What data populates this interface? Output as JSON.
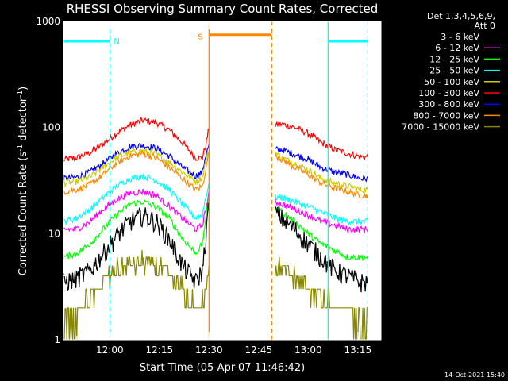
{
  "chart_data": {
    "type": "line",
    "title": "RHESSI Observing Summary Count Rates, Corrected",
    "xlabel": "Start Time (05-Apr-07 11:46:42)",
    "ylabel": "Corrected Count Rate (s",
    "ylabel_sup1": "-1",
    "ylabel_mid": " detector",
    "ylabel_sup2": "-1",
    "ylabel_end": ")",
    "y_scale": "log",
    "ylim": [
      1,
      1000
    ],
    "xlim_min": [
      0,
      96
    ],
    "x_ticks": [
      {
        "m": 14,
        "label": "12:00"
      },
      {
        "m": 29,
        "label": "12:15"
      },
      {
        "m": 44,
        "label": "12:30"
      },
      {
        "m": 59,
        "label": "12:45"
      },
      {
        "m": 74,
        "label": "13:00"
      },
      {
        "m": 89,
        "label": "13:15"
      }
    ],
    "y_ticks": [
      {
        "v": 1,
        "label": "1"
      },
      {
        "v": 10,
        "label": "10"
      },
      {
        "v": 100,
        "label": "100"
      },
      {
        "v": 1000,
        "label": "1000"
      }
    ],
    "legend": {
      "placement": "right",
      "header": [
        "Det 1,3,4,5,6,9,",
        "Att 0"
      ],
      "entries": [
        {
          "name": "3 - 6 keV",
          "color": "#000000"
        },
        {
          "name": "6 - 12 keV",
          "color": "#ff00ff"
        },
        {
          "name": "12 - 25 keV",
          "color": "#00ff00"
        },
        {
          "name": "25 - 50 keV",
          "color": "#00ffff"
        },
        {
          "name": "50 - 100 keV",
          "color": "#cccc00"
        },
        {
          "name": "100 - 300 keV",
          "color": "#ff0000"
        },
        {
          "name": "300 - 800 keV",
          "color": "#0000ff"
        },
        {
          "name": "800 - 7000 keV",
          "color": "#ff8800"
        },
        {
          "name": "7000 - 15000 keV",
          "color": "#888800"
        }
      ]
    },
    "gap": {
      "start_min": 44,
      "end_min": 63
    },
    "night_markers": {
      "color": "#00ffff",
      "label": "N",
      "dashed_min": [
        0,
        14,
        92
      ],
      "solid_min": [
        80
      ],
      "bars": [
        [
          0,
          14
        ],
        [
          80,
          92
        ]
      ],
      "bar_level": 650
    },
    "saa_marker": {
      "color": "#ff8800",
      "label": "S",
      "solid_min": [
        44
      ],
      "dashed_min": [
        63
      ],
      "bar": [
        44,
        63
      ],
      "bar_level": 750
    },
    "footer_timestamp": "14-Oct-2021 15:40",
    "series": [
      {
        "name": "100 - 300 keV",
        "color": "#ff0000",
        "x": [
          0,
          4,
          8,
          12,
          16,
          20,
          24,
          28,
          32,
          36,
          40,
          42,
          43,
          44,
          64,
          66,
          70,
          74,
          78,
          82,
          86,
          90,
          92
        ],
        "y": [
          50,
          52,
          58,
          70,
          88,
          105,
          117,
          112,
          95,
          72,
          52,
          52,
          68,
          100,
          105,
          108,
          100,
          88,
          72,
          62,
          57,
          53,
          53
        ]
      },
      {
        "name": "300 - 800 keV",
        "color": "#0000ff",
        "x": [
          0,
          4,
          8,
          12,
          16,
          20,
          24,
          28,
          32,
          36,
          40,
          42,
          43,
          44,
          64,
          66,
          70,
          74,
          78,
          82,
          86,
          90,
          92
        ],
        "y": [
          33,
          34,
          38,
          46,
          57,
          66,
          68,
          64,
          54,
          42,
          35,
          38,
          55,
          68,
          62,
          62,
          56,
          50,
          42,
          38,
          36,
          33,
          33
        ]
      },
      {
        "name": "50 - 100 keV",
        "color": "#cccc00",
        "x": [
          0,
          4,
          8,
          12,
          16,
          20,
          24,
          28,
          32,
          36,
          40,
          42,
          43,
          44,
          64,
          66,
          70,
          74,
          78,
          82,
          86,
          90,
          92
        ],
        "y": [
          30,
          31,
          34,
          42,
          52,
          58,
          60,
          56,
          47,
          38,
          31,
          34,
          48,
          62,
          58,
          52,
          46,
          40,
          33,
          30,
          28,
          26,
          26
        ]
      },
      {
        "name": "800 - 7000 keV",
        "color": "#ff8800",
        "x": [
          0,
          4,
          8,
          12,
          16,
          20,
          24,
          28,
          32,
          36,
          40,
          42,
          43,
          44,
          64,
          66,
          70,
          74,
          78,
          82,
          86,
          90,
          92
        ],
        "y": [
          25,
          26,
          29,
          36,
          46,
          54,
          57,
          52,
          42,
          33,
          26,
          28,
          40,
          60,
          55,
          50,
          42,
          36,
          30,
          27,
          25,
          23,
          23
        ]
      },
      {
        "name": "25 - 50 keV",
        "color": "#00ffff",
        "x": [
          0,
          4,
          8,
          12,
          16,
          20,
          24,
          28,
          32,
          36,
          40,
          42,
          43,
          44,
          64,
          66,
          70,
          74,
          78,
          82,
          86,
          90,
          92
        ],
        "y": [
          13,
          14,
          17,
          22,
          28,
          33,
          35,
          32,
          26,
          19,
          14,
          15,
          22,
          30,
          22,
          22,
          20,
          18,
          16,
          14,
          13,
          13,
          13
        ]
      },
      {
        "name": "6 - 12 keV",
        "color": "#ff00ff",
        "x": [
          0,
          4,
          8,
          12,
          16,
          20,
          24,
          28,
          32,
          36,
          40,
          42,
          43,
          44,
          64,
          66,
          70,
          74,
          78,
          82,
          86,
          90,
          92
        ],
        "y": [
          11,
          11,
          13,
          17,
          21,
          24,
          25,
          23,
          18,
          14,
          11,
          12,
          17,
          24,
          20,
          19,
          17,
          15,
          13,
          12,
          11,
          11,
          11
        ]
      },
      {
        "name": "12 - 25 keV",
        "color": "#00ff00",
        "x": [
          0,
          4,
          8,
          12,
          16,
          20,
          24,
          28,
          32,
          36,
          40,
          42,
          43,
          44,
          64,
          66,
          70,
          74,
          78,
          82,
          86,
          90,
          92
        ],
        "y": [
          6,
          6.5,
          8,
          11,
          15,
          19,
          20,
          18,
          14,
          9,
          6.5,
          8,
          14,
          22,
          18,
          16,
          13,
          10,
          8,
          7,
          6,
          6,
          6
        ]
      },
      {
        "name": "3 - 6 keV",
        "color": "#000000",
        "x": [
          0,
          4,
          8,
          12,
          16,
          20,
          24,
          28,
          32,
          36,
          40,
          42,
          43,
          44,
          64,
          66,
          70,
          74,
          78,
          82,
          86,
          90,
          92
        ],
        "y": [
          3.5,
          3.8,
          4.5,
          6.5,
          9.5,
          13,
          15,
          13,
          9,
          5,
          3.5,
          4.5,
          9,
          20,
          16,
          14,
          11,
          8,
          6,
          4.5,
          4,
          3.5,
          3.5
        ]
      },
      {
        "name": "7000 - 15000 keV",
        "color": "#888800",
        "x": [
          0,
          4,
          8,
          12,
          16,
          20,
          24,
          28,
          32,
          36,
          40,
          42,
          43,
          44,
          64,
          66,
          70,
          74,
          78,
          82,
          86,
          90,
          92
        ],
        "y": [
          1.5,
          1.8,
          2.5,
          3.5,
          4.5,
          5.2,
          5.5,
          5,
          4,
          3,
          2,
          2.2,
          3,
          5,
          5,
          4.5,
          3.8,
          3,
          2.5,
          2,
          1.8,
          1.5,
          1.5
        ]
      }
    ]
  }
}
